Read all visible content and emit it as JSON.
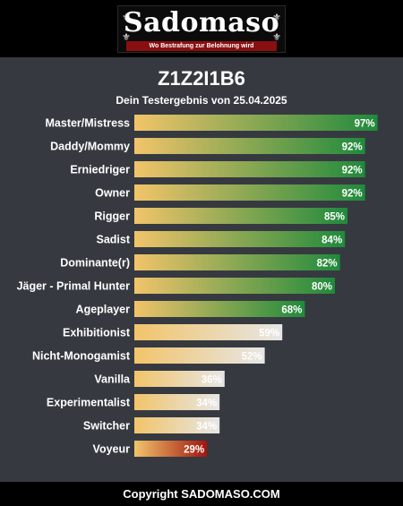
{
  "header": {
    "logo_text": "Sadomaso",
    "logo_tagline": "Wo Bestrafung zur Belohnung wird"
  },
  "result": {
    "title": "Z1Z2I1B6",
    "subtitle": "Dein Testergebnis von 25.04.2025"
  },
  "chart_data": {
    "type": "bar",
    "orientation": "horizontal",
    "value_suffix": "%",
    "xlim": [
      0,
      100
    ],
    "grid": false,
    "categories": [
      "Master/Mistress",
      "Daddy/Mommy",
      "Erniedriger",
      "Owner",
      "Rigger",
      "Sadist",
      "Dominante(r)",
      "Jäger - Primal Hunter",
      "Ageplayer",
      "Exhibitionist",
      "Nicht-Monogamist",
      "Vanilla",
      "Experimentalist",
      "Switcher",
      "Voyeur"
    ],
    "values": [
      97,
      92,
      92,
      92,
      85,
      84,
      82,
      80,
      68,
      59,
      52,
      36,
      34,
      34,
      29
    ],
    "colors": {
      "start": "#f2c46a",
      "high_end": "#1f8a3c",
      "mid_end": "#e6e6e6",
      "low_end": "#a0150f"
    }
  },
  "footer": {
    "copyright": "Copyright SADOMASO.COM"
  }
}
